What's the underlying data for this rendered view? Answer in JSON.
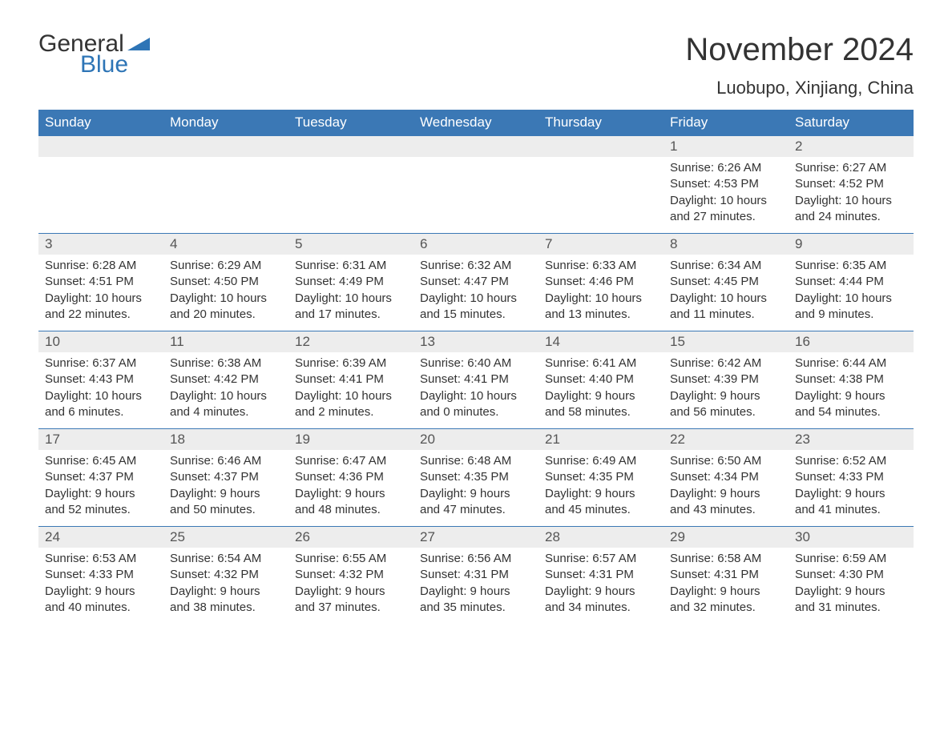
{
  "logo": {
    "word1": "General",
    "word2": "Blue"
  },
  "title": "November 2024",
  "location": "Luobupo, Xinjiang, China",
  "colors": {
    "header_bg": "#3b78b5",
    "header_text": "#ffffff",
    "daynum_bg": "#ededed",
    "border": "#3b78b5",
    "text": "#333333",
    "logo_blue": "#2e75b6"
  },
  "weekdays": [
    "Sunday",
    "Monday",
    "Tuesday",
    "Wednesday",
    "Thursday",
    "Friday",
    "Saturday"
  ],
  "weeks": [
    [
      {
        "blank": true
      },
      {
        "blank": true
      },
      {
        "blank": true
      },
      {
        "blank": true
      },
      {
        "blank": true
      },
      {
        "n": "1",
        "sunrise": "Sunrise: 6:26 AM",
        "sunset": "Sunset: 4:53 PM",
        "day1": "Daylight: 10 hours",
        "day2": "and 27 minutes."
      },
      {
        "n": "2",
        "sunrise": "Sunrise: 6:27 AM",
        "sunset": "Sunset: 4:52 PM",
        "day1": "Daylight: 10 hours",
        "day2": "and 24 minutes."
      }
    ],
    [
      {
        "n": "3",
        "sunrise": "Sunrise: 6:28 AM",
        "sunset": "Sunset: 4:51 PM",
        "day1": "Daylight: 10 hours",
        "day2": "and 22 minutes."
      },
      {
        "n": "4",
        "sunrise": "Sunrise: 6:29 AM",
        "sunset": "Sunset: 4:50 PM",
        "day1": "Daylight: 10 hours",
        "day2": "and 20 minutes."
      },
      {
        "n": "5",
        "sunrise": "Sunrise: 6:31 AM",
        "sunset": "Sunset: 4:49 PM",
        "day1": "Daylight: 10 hours",
        "day2": "and 17 minutes."
      },
      {
        "n": "6",
        "sunrise": "Sunrise: 6:32 AM",
        "sunset": "Sunset: 4:47 PM",
        "day1": "Daylight: 10 hours",
        "day2": "and 15 minutes."
      },
      {
        "n": "7",
        "sunrise": "Sunrise: 6:33 AM",
        "sunset": "Sunset: 4:46 PM",
        "day1": "Daylight: 10 hours",
        "day2": "and 13 minutes."
      },
      {
        "n": "8",
        "sunrise": "Sunrise: 6:34 AM",
        "sunset": "Sunset: 4:45 PM",
        "day1": "Daylight: 10 hours",
        "day2": "and 11 minutes."
      },
      {
        "n": "9",
        "sunrise": "Sunrise: 6:35 AM",
        "sunset": "Sunset: 4:44 PM",
        "day1": "Daylight: 10 hours",
        "day2": "and 9 minutes."
      }
    ],
    [
      {
        "n": "10",
        "sunrise": "Sunrise: 6:37 AM",
        "sunset": "Sunset: 4:43 PM",
        "day1": "Daylight: 10 hours",
        "day2": "and 6 minutes."
      },
      {
        "n": "11",
        "sunrise": "Sunrise: 6:38 AM",
        "sunset": "Sunset: 4:42 PM",
        "day1": "Daylight: 10 hours",
        "day2": "and 4 minutes."
      },
      {
        "n": "12",
        "sunrise": "Sunrise: 6:39 AM",
        "sunset": "Sunset: 4:41 PM",
        "day1": "Daylight: 10 hours",
        "day2": "and 2 minutes."
      },
      {
        "n": "13",
        "sunrise": "Sunrise: 6:40 AM",
        "sunset": "Sunset: 4:41 PM",
        "day1": "Daylight: 10 hours",
        "day2": "and 0 minutes."
      },
      {
        "n": "14",
        "sunrise": "Sunrise: 6:41 AM",
        "sunset": "Sunset: 4:40 PM",
        "day1": "Daylight: 9 hours",
        "day2": "and 58 minutes."
      },
      {
        "n": "15",
        "sunrise": "Sunrise: 6:42 AM",
        "sunset": "Sunset: 4:39 PM",
        "day1": "Daylight: 9 hours",
        "day2": "and 56 minutes."
      },
      {
        "n": "16",
        "sunrise": "Sunrise: 6:44 AM",
        "sunset": "Sunset: 4:38 PM",
        "day1": "Daylight: 9 hours",
        "day2": "and 54 minutes."
      }
    ],
    [
      {
        "n": "17",
        "sunrise": "Sunrise: 6:45 AM",
        "sunset": "Sunset: 4:37 PM",
        "day1": "Daylight: 9 hours",
        "day2": "and 52 minutes."
      },
      {
        "n": "18",
        "sunrise": "Sunrise: 6:46 AM",
        "sunset": "Sunset: 4:37 PM",
        "day1": "Daylight: 9 hours",
        "day2": "and 50 minutes."
      },
      {
        "n": "19",
        "sunrise": "Sunrise: 6:47 AM",
        "sunset": "Sunset: 4:36 PM",
        "day1": "Daylight: 9 hours",
        "day2": "and 48 minutes."
      },
      {
        "n": "20",
        "sunrise": "Sunrise: 6:48 AM",
        "sunset": "Sunset: 4:35 PM",
        "day1": "Daylight: 9 hours",
        "day2": "and 47 minutes."
      },
      {
        "n": "21",
        "sunrise": "Sunrise: 6:49 AM",
        "sunset": "Sunset: 4:35 PM",
        "day1": "Daylight: 9 hours",
        "day2": "and 45 minutes."
      },
      {
        "n": "22",
        "sunrise": "Sunrise: 6:50 AM",
        "sunset": "Sunset: 4:34 PM",
        "day1": "Daylight: 9 hours",
        "day2": "and 43 minutes."
      },
      {
        "n": "23",
        "sunrise": "Sunrise: 6:52 AM",
        "sunset": "Sunset: 4:33 PM",
        "day1": "Daylight: 9 hours",
        "day2": "and 41 minutes."
      }
    ],
    [
      {
        "n": "24",
        "sunrise": "Sunrise: 6:53 AM",
        "sunset": "Sunset: 4:33 PM",
        "day1": "Daylight: 9 hours",
        "day2": "and 40 minutes."
      },
      {
        "n": "25",
        "sunrise": "Sunrise: 6:54 AM",
        "sunset": "Sunset: 4:32 PM",
        "day1": "Daylight: 9 hours",
        "day2": "and 38 minutes."
      },
      {
        "n": "26",
        "sunrise": "Sunrise: 6:55 AM",
        "sunset": "Sunset: 4:32 PM",
        "day1": "Daylight: 9 hours",
        "day2": "and 37 minutes."
      },
      {
        "n": "27",
        "sunrise": "Sunrise: 6:56 AM",
        "sunset": "Sunset: 4:31 PM",
        "day1": "Daylight: 9 hours",
        "day2": "and 35 minutes."
      },
      {
        "n": "28",
        "sunrise": "Sunrise: 6:57 AM",
        "sunset": "Sunset: 4:31 PM",
        "day1": "Daylight: 9 hours",
        "day2": "and 34 minutes."
      },
      {
        "n": "29",
        "sunrise": "Sunrise: 6:58 AM",
        "sunset": "Sunset: 4:31 PM",
        "day1": "Daylight: 9 hours",
        "day2": "and 32 minutes."
      },
      {
        "n": "30",
        "sunrise": "Sunrise: 6:59 AM",
        "sunset": "Sunset: 4:30 PM",
        "day1": "Daylight: 9 hours",
        "day2": "and 31 minutes."
      }
    ]
  ]
}
